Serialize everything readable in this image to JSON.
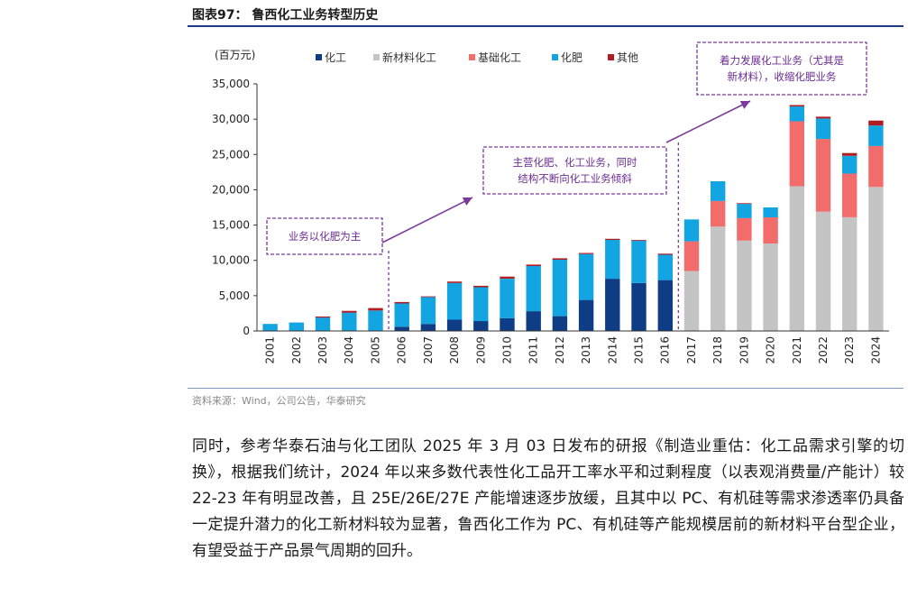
{
  "figure_title": "图表97： 鲁西化工业务转型历史",
  "source": "资料来源：Wind，公司公告，华泰研究",
  "paragraph": "同时，参考华泰石油与化工团队 2025 年 3 月 03 日发布的研报《制造业重估：化工品需求引擎的切换》，根据我们统计，2024 年以来多数代表性化工品开工率水平和过剩程度（以表观消费量/产能计）较 22-23 年有明显改善，且 25E/26E/27E 产能增速逐步放缓，且其中以 PC、有机硅等需求渗透率仍具备一定提升潜力的化工新材料较为显著，鲁西化工作为 PC、有机硅等产能规模居前的新材料平台型企业，有望受益于产品景气周期的回升。",
  "chart_data": {
    "type": "bar",
    "stacked": true,
    "unit_label": "(百万元)",
    "categories": [
      "2001",
      "2002",
      "2003",
      "2004",
      "2005",
      "2006",
      "2007",
      "2008",
      "2009",
      "2010",
      "2011",
      "2012",
      "2013",
      "2014",
      "2015",
      "2016",
      "2017",
      "2018",
      "2019",
      "2020",
      "2021",
      "2022",
      "2023",
      "2024"
    ],
    "ylim": [
      0,
      35000
    ],
    "yticks": [
      0,
      5000,
      10000,
      15000,
      20000,
      25000,
      30000,
      35000
    ],
    "ytick_labels": [
      "0",
      "5,000",
      "10,000",
      "15,000",
      "20,000",
      "25,000",
      "30,000",
      "35,000"
    ],
    "legend_position": "top",
    "series": [
      {
        "name": "化工",
        "color": "#0e3d86",
        "values": [
          0,
          0,
          0,
          0,
          0,
          600,
          1000,
          1600,
          1400,
          1800,
          2800,
          2100,
          4400,
          7400,
          6800,
          7200,
          0,
          0,
          0,
          0,
          0,
          0,
          0,
          0
        ]
      },
      {
        "name": "新材料化工",
        "color": "#c4c4c4",
        "values": [
          0,
          0,
          0,
          0,
          0,
          0,
          0,
          0,
          0,
          0,
          0,
          0,
          0,
          0,
          0,
          0,
          8500,
          14800,
          12800,
          12400,
          20500,
          16900,
          16100,
          20400
        ]
      },
      {
        "name": "基础化工",
        "color": "#f26c6c",
        "values": [
          0,
          0,
          0,
          0,
          0,
          0,
          0,
          0,
          0,
          0,
          0,
          0,
          0,
          0,
          0,
          0,
          4200,
          3600,
          3200,
          3700,
          9200,
          10300,
          6200,
          5800
        ]
      },
      {
        "name": "化肥",
        "color": "#12a5e2",
        "values": [
          1000,
          1200,
          1900,
          2600,
          2900,
          3300,
          3800,
          5200,
          4800,
          5600,
          6400,
          8000,
          6500,
          5500,
          6000,
          3600,
          3100,
          2800,
          2000,
          1400,
          2100,
          2900,
          2500,
          2900
        ]
      },
      {
        "name": "其他",
        "color": "#b01c22",
        "values": [
          0,
          0,
          150,
          250,
          350,
          200,
          100,
          200,
          200,
          300,
          200,
          200,
          150,
          150,
          100,
          150,
          0,
          0,
          100,
          0,
          200,
          250,
          400,
          700
        ]
      }
    ],
    "annotations": [
      {
        "text": [
          "业务以化肥为主"
        ]
      },
      {
        "text": [
          "主营化肥、化工业务，同时",
          "结构不断向化工业务倾斜"
        ]
      },
      {
        "text": [
          "着力发展化工业务（尤其是",
          "新材料），收缩化肥业务"
        ]
      }
    ]
  }
}
